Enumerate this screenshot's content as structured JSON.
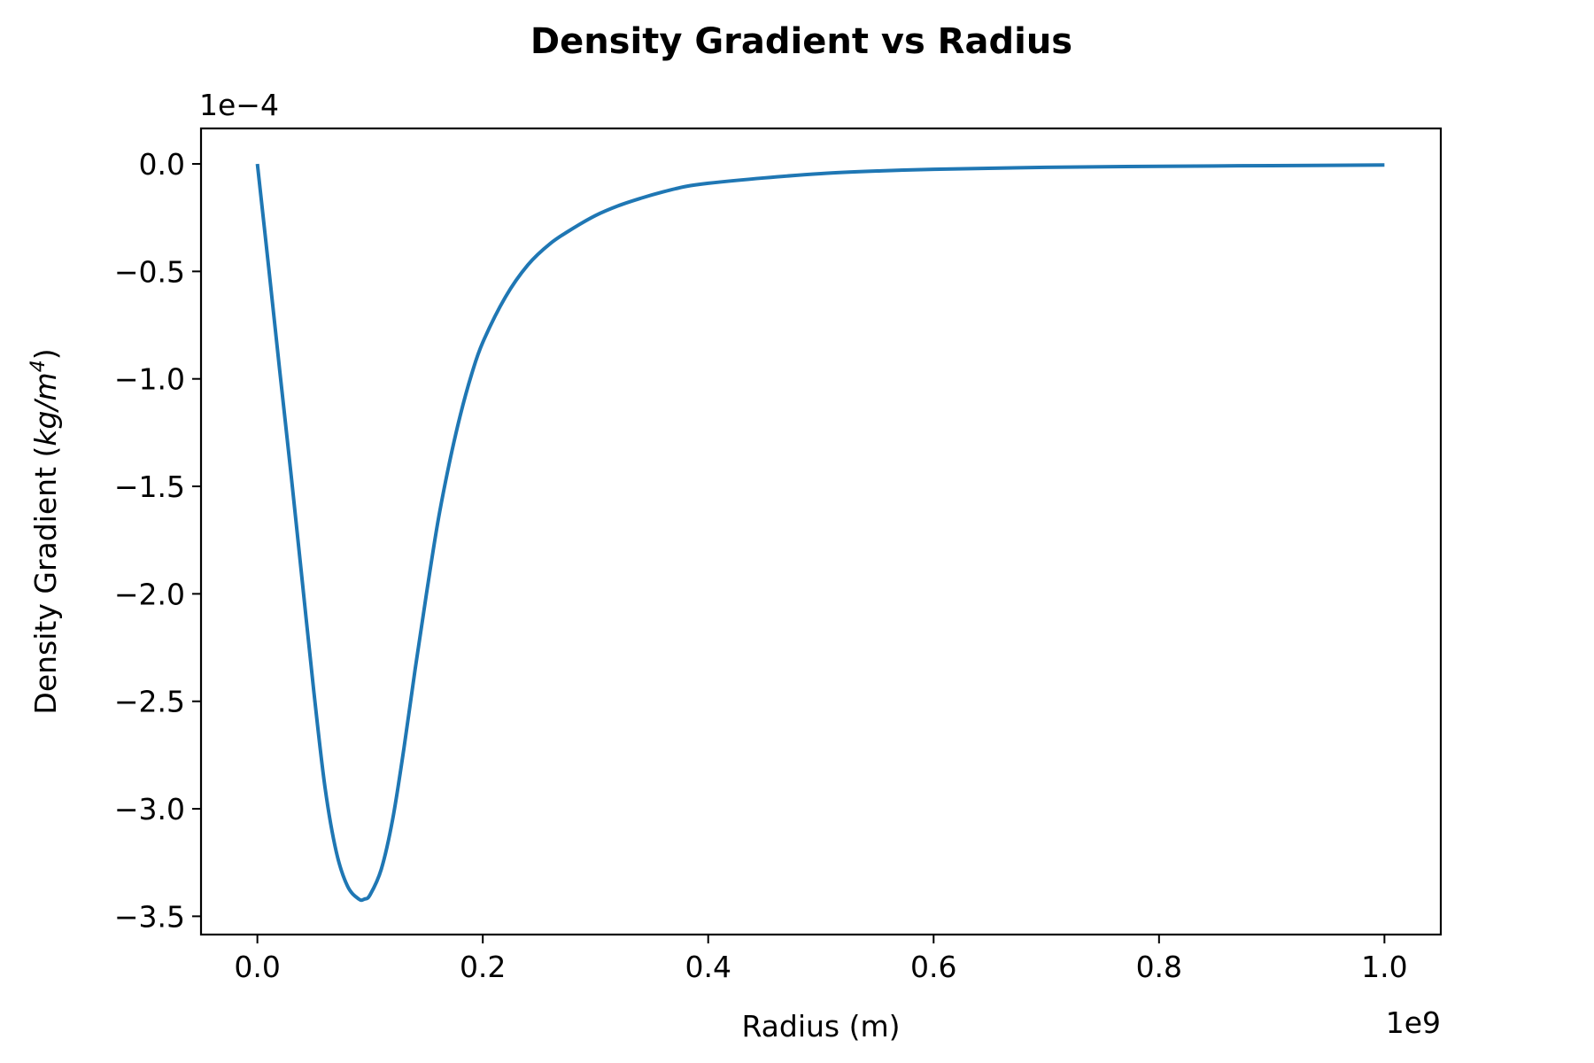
{
  "chart_data": {
    "type": "line",
    "title": "Density Gradient vs Radius",
    "xlabel": "Radius (m)",
    "ylabel_text": "Density Gradient (",
    "ylabel_unit_base": "kg/m",
    "ylabel_unit_exp": "4",
    "ylabel_close": ")",
    "x_offset_label": "1e9",
    "y_offset_label": "1e−4",
    "x_scale": 1000000000.0,
    "y_scale": 0.0001,
    "xlim": [
      -0.05,
      1.05
    ],
    "ylim": [
      -3.585,
      0.165
    ],
    "x_ticks": [
      0.0,
      0.2,
      0.4,
      0.6,
      0.8,
      1.0
    ],
    "x_tick_labels": [
      "0.0",
      "0.2",
      "0.4",
      "0.6",
      "0.8",
      "1.0"
    ],
    "y_ticks": [
      0.0,
      -0.5,
      -1.0,
      -1.5,
      -2.0,
      -2.5,
      -3.0,
      -3.5
    ],
    "y_tick_labels": [
      "0.0",
      "−0.5",
      "−1.0",
      "−1.5",
      "−2.0",
      "−2.5",
      "−3.0",
      "−3.5"
    ],
    "grid": false,
    "color": "#1f77b4",
    "series": [
      {
        "x": [
          0.0,
          0.01,
          0.02,
          0.03,
          0.04,
          0.05,
          0.06,
          0.07,
          0.08,
          0.09,
          0.095,
          0.1,
          0.11,
          0.12,
          0.13,
          0.14,
          0.15,
          0.16,
          0.17,
          0.18,
          0.19,
          0.2,
          0.22,
          0.24,
          0.26,
          0.28,
          0.3,
          0.32,
          0.34,
          0.36,
          0.38,
          0.4,
          0.45,
          0.5,
          0.55,
          0.6,
          0.7,
          0.8,
          0.9,
          1.0
        ],
        "y": [
          0.0,
          -0.48,
          -0.97,
          -1.45,
          -1.95,
          -2.45,
          -2.9,
          -3.2,
          -3.36,
          -3.42,
          -3.42,
          -3.4,
          -3.28,
          -3.05,
          -2.72,
          -2.35,
          -2.0,
          -1.67,
          -1.4,
          -1.17,
          -0.98,
          -0.83,
          -0.62,
          -0.47,
          -0.37,
          -0.3,
          -0.24,
          -0.195,
          -0.16,
          -0.13,
          -0.105,
          -0.09,
          -0.065,
          -0.045,
          -0.033,
          -0.025,
          -0.016,
          -0.011,
          -0.008,
          -0.005
        ]
      }
    ]
  }
}
